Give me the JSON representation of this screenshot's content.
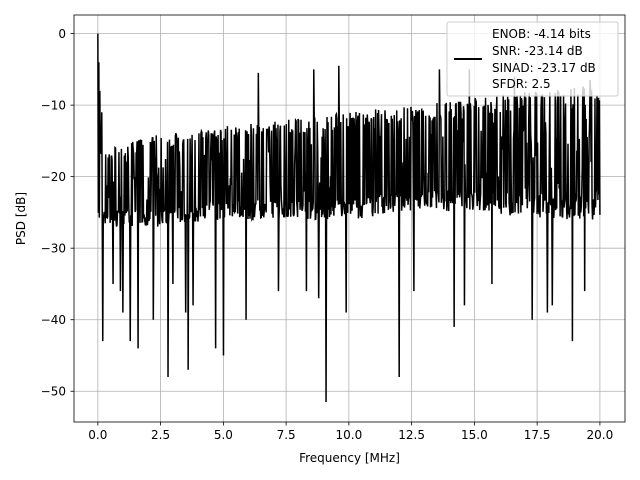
{
  "chart_data": {
    "type": "line",
    "title": "",
    "xlabel": "Frequency [MHz]",
    "ylabel": "PSD [dB]",
    "xlim": [
      -0.95,
      21.0
    ],
    "ylim": [
      -54.3,
      2.6
    ],
    "xticks": [
      0.0,
      2.5,
      5.0,
      7.5,
      10.0,
      12.5,
      15.0,
      17.5,
      20.0
    ],
    "xtick_labels": [
      "0.0",
      "2.5",
      "5.0",
      "7.5",
      "10.0",
      "12.5",
      "15.0",
      "17.5",
      "20.0"
    ],
    "yticks": [
      0,
      -10,
      -20,
      -30,
      -40,
      -50
    ],
    "ytick_labels": [
      "0",
      "−10",
      "−20",
      "−30",
      "−40",
      "−50"
    ],
    "grid": true,
    "legend_position": "top-right",
    "legend_entries": [
      "ENOB: -4.14 bits",
      "SNR: -23.14 dB",
      "SINAD: -23.17 dB",
      "SFDR: 2.5"
    ],
    "series": [
      {
        "color": "#000000",
        "x_range": [
          0.0,
          20.0
        ],
        "num_points": 1024,
        "band_top_db": [
          -16,
          -14,
          -13,
          -12,
          -11,
          -10,
          -9,
          -8,
          -7
        ],
        "band_bottom_db": [
          -27,
          -27,
          -26,
          -26,
          -26,
          -25,
          -25,
          -26,
          -26
        ],
        "band_positions_mhz": [
          0.4,
          2.5,
          5,
          7.5,
          10,
          12.5,
          15,
          17.5,
          20
        ],
        "peaks": [
          {
            "x": 0.0,
            "y": 0
          },
          {
            "x": 0.04,
            "y": -4
          },
          {
            "x": 0.08,
            "y": -8
          },
          {
            "x": 0.16,
            "y": -11
          },
          {
            "x": 6.4,
            "y": -5.5
          },
          {
            "x": 8.6,
            "y": -5
          },
          {
            "x": 9.6,
            "y": -4.5
          },
          {
            "x": 13.6,
            "y": -5
          },
          {
            "x": 14.8,
            "y": -5
          },
          {
            "x": 16.6,
            "y": -6
          },
          {
            "x": 19.6,
            "y": -6.5
          }
        ],
        "dips": [
          {
            "x": 0.2,
            "y": -43
          },
          {
            "x": 0.6,
            "y": -35
          },
          {
            "x": 0.9,
            "y": -36
          },
          {
            "x": 1.0,
            "y": -39
          },
          {
            "x": 1.3,
            "y": -43
          },
          {
            "x": 1.6,
            "y": -44
          },
          {
            "x": 2.2,
            "y": -40
          },
          {
            "x": 2.8,
            "y": -48
          },
          {
            "x": 3.0,
            "y": -35
          },
          {
            "x": 3.5,
            "y": -39
          },
          {
            "x": 3.6,
            "y": -47
          },
          {
            "x": 3.8,
            "y": -38
          },
          {
            "x": 4.7,
            "y": -44
          },
          {
            "x": 5.0,
            "y": -45
          },
          {
            "x": 5.9,
            "y": -40
          },
          {
            "x": 7.2,
            "y": -36
          },
          {
            "x": 8.3,
            "y": -36
          },
          {
            "x": 8.8,
            "y": -37
          },
          {
            "x": 9.1,
            "y": -51.5
          },
          {
            "x": 9.9,
            "y": -39
          },
          {
            "x": 12.0,
            "y": -48
          },
          {
            "x": 12.6,
            "y": -36
          },
          {
            "x": 14.2,
            "y": -41
          },
          {
            "x": 14.6,
            "y": -38
          },
          {
            "x": 15.7,
            "y": -35
          },
          {
            "x": 17.3,
            "y": -40
          },
          {
            "x": 17.9,
            "y": -39
          },
          {
            "x": 18.1,
            "y": -38
          },
          {
            "x": 18.9,
            "y": -43
          },
          {
            "x": 19.4,
            "y": -36
          }
        ]
      }
    ]
  },
  "legend": {
    "line1": "ENOB: -4.14 bits",
    "line2": "SNR: -23.14 dB",
    "line3": "SINAD: -23.17 dB",
    "line4": "SFDR: 2.5"
  },
  "axes": {
    "xlabel": "Frequency [MHz]",
    "ylabel": "PSD [dB]"
  }
}
